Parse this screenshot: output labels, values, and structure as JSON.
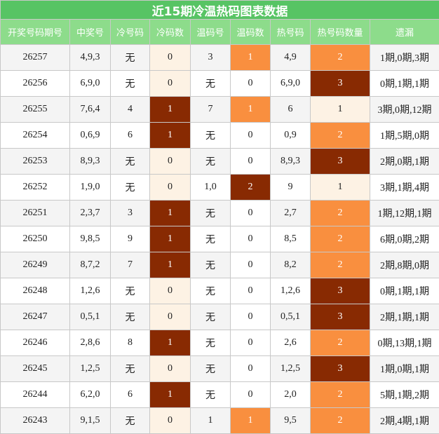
{
  "title": "近15期冷温热码图表数据",
  "table": {
    "headers": [
      "开奖号码期号",
      "中奖号",
      "冷号码",
      "冷码数",
      "温码号",
      "温码数",
      "热号码",
      "热号码数量",
      "遗漏"
    ],
    "rows": [
      [
        "26257",
        "4,9,3",
        "无",
        "0",
        "3",
        "1",
        "4,9",
        "2",
        "1期,0期,3期"
      ],
      [
        "26256",
        "6,9,0",
        "无",
        "0",
        "无",
        "0",
        "6,9,0",
        "3",
        "0期,1期,1期"
      ],
      [
        "26255",
        "7,6,4",
        "4",
        "1",
        "7",
        "1",
        "6",
        "1",
        "3期,0期,12期"
      ],
      [
        "26254",
        "0,6,9",
        "6",
        "1",
        "无",
        "0",
        "0,9",
        "2",
        "1期,5期,0期"
      ],
      [
        "26253",
        "8,9,3",
        "无",
        "0",
        "无",
        "0",
        "8,9,3",
        "3",
        "2期,0期,1期"
      ],
      [
        "26252",
        "1,9,0",
        "无",
        "0",
        "1,0",
        "2",
        "9",
        "1",
        "3期,1期,4期"
      ],
      [
        "26251",
        "2,3,7",
        "3",
        "1",
        "无",
        "0",
        "2,7",
        "2",
        "1期,12期,1期"
      ],
      [
        "26250",
        "9,8,5",
        "9",
        "1",
        "无",
        "0",
        "8,5",
        "2",
        "6期,0期,2期"
      ],
      [
        "26249",
        "8,7,2",
        "7",
        "1",
        "无",
        "0",
        "8,2",
        "2",
        "2期,8期,0期"
      ],
      [
        "26248",
        "1,2,6",
        "无",
        "0",
        "无",
        "0",
        "1,2,6",
        "3",
        "0期,1期,1期"
      ],
      [
        "26247",
        "0,5,1",
        "无",
        "0",
        "无",
        "0",
        "0,5,1",
        "3",
        "2期,1期,1期"
      ],
      [
        "26246",
        "2,8,6",
        "8",
        "1",
        "无",
        "0",
        "2,6",
        "2",
        "0期,13期,1期"
      ],
      [
        "26245",
        "1,2,5",
        "无",
        "0",
        "无",
        "0",
        "1,2,5",
        "3",
        "1期,0期,1期"
      ],
      [
        "26244",
        "6,2,0",
        "6",
        "1",
        "无",
        "0",
        "2,0",
        "2",
        "5期,1期,2期"
      ],
      [
        "26243",
        "9,1,5",
        "无",
        "0",
        "1",
        "1",
        "9,5",
        "2",
        "2期,4期,1期"
      ]
    ]
  }
}
